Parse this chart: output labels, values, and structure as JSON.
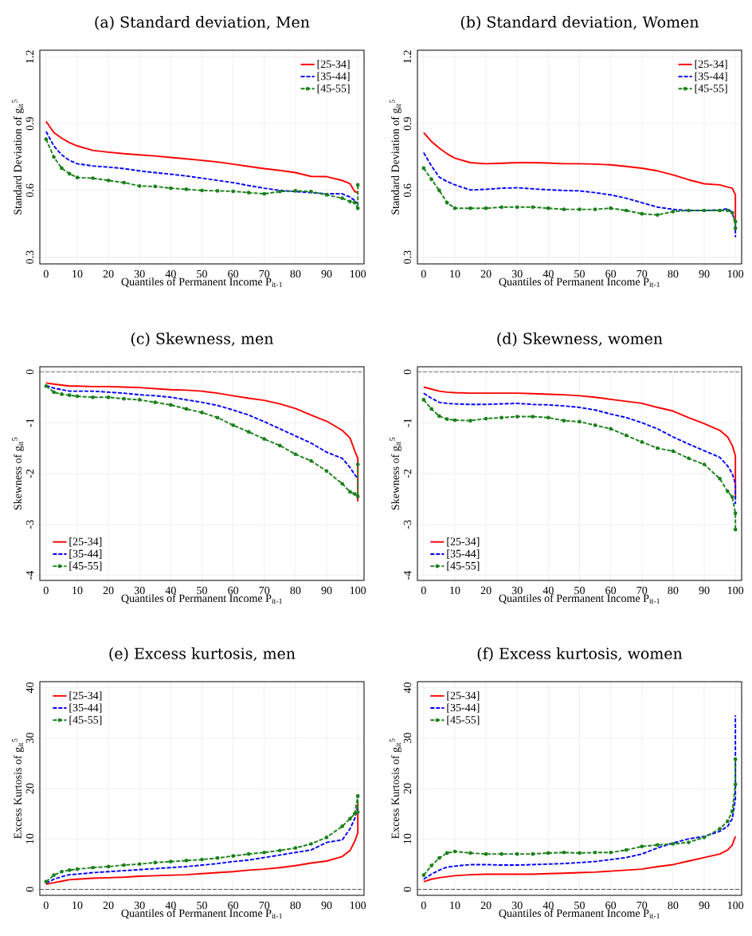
{
  "chart_data": [
    {
      "type": "line",
      "title": "(a) Standard deviation, Men",
      "xlabel": "Quantiles of Permanent Income P$_{it-1}$",
      "ylabel": "Standard Deviation of g$_{it}$$^{5}$",
      "x": [
        0,
        2.5,
        5,
        7.5,
        10,
        15,
        20,
        25,
        30,
        35,
        40,
        45,
        50,
        55,
        60,
        65,
        70,
        75,
        80,
        85,
        90,
        95,
        97.5,
        99,
        100,
        100
      ],
      "xlim": [
        -2,
        102
      ],
      "xticks": [
        0,
        10,
        20,
        30,
        40,
        50,
        60,
        70,
        80,
        90,
        100
      ],
      "ylim": [
        0.27,
        1.23
      ],
      "yticks": [
        0.3,
        0.6,
        0.9,
        1.2
      ],
      "grid": true,
      "legend": "top right",
      "series": [
        {
          "name": "[25-34]",
          "color": "#ff0000",
          "line_style": "solid",
          "marker": "none",
          "values": [
            0.91,
            0.86,
            0.835,
            0.815,
            0.8,
            0.78,
            0.772,
            0.765,
            0.76,
            0.755,
            0.748,
            0.742,
            0.735,
            0.728,
            0.718,
            0.708,
            0.698,
            0.69,
            0.68,
            0.663,
            0.662,
            0.645,
            0.63,
            0.595,
            0.59,
            0.59
          ]
        },
        {
          "name": "[35-44]",
          "color": "#0000ff",
          "line_style": "dashed",
          "marker": "none",
          "x": [
            0,
            2.5,
            5,
            7.5,
            10,
            15,
            20,
            25,
            30,
            35,
            40,
            45,
            50,
            55,
            60,
            65,
            70,
            75,
            80,
            85,
            90,
            95,
            97.5,
            99,
            100
          ],
          "values": [
            0.865,
            0.8,
            0.76,
            0.735,
            0.72,
            0.71,
            0.705,
            0.698,
            0.688,
            0.68,
            0.673,
            0.665,
            0.655,
            0.645,
            0.635,
            0.622,
            0.61,
            0.6,
            0.595,
            0.59,
            0.585,
            0.585,
            0.57,
            0.555,
            0.54
          ]
        },
        {
          "name": "[45-55]",
          "color": "#1a801a",
          "line_style": "dashed",
          "marker": "circle",
          "values": [
            0.83,
            0.75,
            0.7,
            0.675,
            0.658,
            0.655,
            0.645,
            0.635,
            0.62,
            0.618,
            0.61,
            0.605,
            0.6,
            0.598,
            0.596,
            0.59,
            0.585,
            0.595,
            0.598,
            0.595,
            0.58,
            0.565,
            0.55,
            0.545,
            0.52,
            0.625
          ]
        }
      ]
    },
    {
      "type": "line",
      "title": "(b) Standard deviation, Women",
      "xlabel": "Quantiles of Permanent Income P$_{it-1}$",
      "ylabel": "Standard Deviation of g$_{it}$$^{5}$",
      "x": [
        0,
        2.5,
        5,
        7.5,
        10,
        15,
        20,
        25,
        30,
        35,
        40,
        45,
        50,
        55,
        60,
        65,
        70,
        75,
        80,
        85,
        90,
        95,
        97.5,
        99,
        100,
        100
      ],
      "xlim": [
        -2,
        102
      ],
      "xticks": [
        0,
        10,
        20,
        30,
        40,
        50,
        60,
        70,
        80,
        90,
        100
      ],
      "ylim": [
        0.27,
        1.23
      ],
      "yticks": [
        0.3,
        0.6,
        0.9,
        1.2
      ],
      "grid": true,
      "legend": "top right",
      "series": [
        {
          "name": "[25-34]",
          "color": "#ff0000",
          "line_style": "solid",
          "marker": "none",
          "values": [
            0.86,
            0.82,
            0.79,
            0.765,
            0.745,
            0.725,
            0.72,
            0.722,
            0.725,
            0.725,
            0.723,
            0.72,
            0.72,
            0.718,
            0.715,
            0.708,
            0.7,
            0.688,
            0.67,
            0.648,
            0.63,
            0.625,
            0.615,
            0.61,
            0.58,
            0.47
          ]
        },
        {
          "name": "[35-44]",
          "color": "#0000ff",
          "line_style": "dashed",
          "marker": "none",
          "values": [
            0.77,
            0.71,
            0.66,
            0.64,
            0.625,
            0.602,
            0.605,
            0.61,
            0.612,
            0.607,
            0.603,
            0.6,
            0.598,
            0.59,
            0.58,
            0.565,
            0.545,
            0.525,
            0.515,
            0.51,
            0.51,
            0.512,
            0.518,
            0.5,
            0.45,
            0.39
          ]
        },
        {
          "name": "[45-55]",
          "color": "#1a801a",
          "line_style": "dashed",
          "marker": "circle",
          "values": [
            0.7,
            0.65,
            0.6,
            0.545,
            0.52,
            0.52,
            0.52,
            0.525,
            0.525,
            0.525,
            0.52,
            0.515,
            0.515,
            0.515,
            0.52,
            0.51,
            0.495,
            0.49,
            0.505,
            0.51,
            0.51,
            0.51,
            0.51,
            0.5,
            0.46,
            0.43
          ]
        }
      ]
    },
    {
      "type": "line",
      "title": "(c) Skewness, men",
      "xlabel": "Quantiles of Permanent Income P$_{it-1}$",
      "ylabel": "Skewness of g$_{it}$$^{5}$",
      "x": [
        0,
        2.5,
        5,
        7.5,
        10,
        15,
        20,
        25,
        30,
        35,
        40,
        45,
        50,
        55,
        60,
        65,
        70,
        75,
        80,
        85,
        90,
        95,
        97.5,
        99,
        100,
        100
      ],
      "xlim": [
        -2,
        102
      ],
      "xticks": [
        0,
        10,
        20,
        30,
        40,
        50,
        60,
        70,
        80,
        90,
        100
      ],
      "ylim": [
        -4.1,
        0.1
      ],
      "yticks": [
        -4,
        -3,
        -2,
        -1,
        0
      ],
      "grid": true,
      "legend": "bottom left",
      "ref_lines": [
        {
          "axis": "y",
          "value": 0,
          "color": "#555555",
          "line_style": "dashed"
        }
      ],
      "series": [
        {
          "name": "[25-34]",
          "color": "#ff0000",
          "line_style": "solid",
          "marker": "none",
          "values": [
            -0.22,
            -0.24,
            -0.26,
            -0.28,
            -0.28,
            -0.29,
            -0.29,
            -0.3,
            -0.31,
            -0.33,
            -0.35,
            -0.36,
            -0.38,
            -0.42,
            -0.47,
            -0.52,
            -0.56,
            -0.63,
            -0.72,
            -0.85,
            -0.97,
            -1.15,
            -1.3,
            -1.55,
            -1.7,
            -2.55
          ]
        },
        {
          "name": "[35-44]",
          "color": "#0000ff",
          "line_style": "dashed",
          "marker": "none",
          "x": [
            0,
            2.5,
            5,
            7.5,
            10,
            15,
            20,
            25,
            30,
            35,
            40,
            45,
            50,
            55,
            60,
            65,
            70,
            75,
            80,
            85,
            90,
            95,
            97.5,
            99,
            100
          ],
          "values": [
            -0.27,
            -0.32,
            -0.35,
            -0.38,
            -0.38,
            -0.38,
            -0.4,
            -0.42,
            -0.45,
            -0.47,
            -0.5,
            -0.55,
            -0.6,
            -0.66,
            -0.75,
            -0.85,
            -0.98,
            -1.12,
            -1.26,
            -1.4,
            -1.58,
            -1.7,
            -1.88,
            -2.02,
            -2.1
          ]
        },
        {
          "name": "[45-55]",
          "color": "#1a801a",
          "line_style": "dashed",
          "marker": "circle",
          "values": [
            -0.28,
            -0.4,
            -0.44,
            -0.46,
            -0.48,
            -0.5,
            -0.5,
            -0.53,
            -0.55,
            -0.6,
            -0.65,
            -0.73,
            -0.8,
            -0.9,
            -1.05,
            -1.18,
            -1.32,
            -1.45,
            -1.62,
            -1.75,
            -1.95,
            -2.2,
            -2.36,
            -2.4,
            -2.45,
            -1.82
          ]
        }
      ]
    },
    {
      "type": "line",
      "title": "(d) Skewness, women",
      "xlabel": "Quantiles of Permanent Income P$_{it-1}$",
      "ylabel": "Skewness of g$_{it}$$^{5}$",
      "x": [
        0,
        2.5,
        5,
        7.5,
        10,
        15,
        20,
        25,
        30,
        35,
        40,
        45,
        50,
        55,
        60,
        65,
        70,
        75,
        80,
        85,
        90,
        95,
        97.5,
        99,
        100,
        100
      ],
      "xlim": [
        -2,
        102
      ],
      "xticks": [
        0,
        10,
        20,
        30,
        40,
        50,
        60,
        70,
        80,
        90,
        100
      ],
      "ylim": [
        -4.1,
        0.1
      ],
      "yticks": [
        -4,
        -3,
        -2,
        -1,
        0
      ],
      "grid": true,
      "legend": "bottom left",
      "ref_lines": [
        {
          "axis": "y",
          "value": 0,
          "color": "#555555",
          "line_style": "dashed"
        }
      ],
      "series": [
        {
          "name": "[25-34]",
          "color": "#ff0000",
          "line_style": "solid",
          "marker": "none",
          "values": [
            -0.3,
            -0.34,
            -0.38,
            -0.4,
            -0.41,
            -0.42,
            -0.42,
            -0.42,
            -0.42,
            -0.43,
            -0.44,
            -0.45,
            -0.47,
            -0.5,
            -0.54,
            -0.58,
            -0.62,
            -0.7,
            -0.77,
            -0.9,
            -1.02,
            -1.15,
            -1.28,
            -1.45,
            -1.65,
            -2.5
          ]
        },
        {
          "name": "[35-44]",
          "color": "#0000ff",
          "line_style": "dashed",
          "marker": "none",
          "values": [
            -0.42,
            -0.52,
            -0.6,
            -0.62,
            -0.63,
            -0.64,
            -0.64,
            -0.63,
            -0.62,
            -0.64,
            -0.65,
            -0.67,
            -0.7,
            -0.75,
            -0.83,
            -0.9,
            -1.0,
            -1.12,
            -1.28,
            -1.42,
            -1.55,
            -1.68,
            -1.85,
            -2.0,
            -2.2,
            -2.6
          ]
        },
        {
          "name": "[45-55]",
          "color": "#1a801a",
          "line_style": "dashed",
          "marker": "circle",
          "values": [
            -0.55,
            -0.73,
            -0.87,
            -0.93,
            -0.95,
            -0.96,
            -0.92,
            -0.9,
            -0.88,
            -0.88,
            -0.9,
            -0.96,
            -0.98,
            -1.05,
            -1.12,
            -1.25,
            -1.38,
            -1.5,
            -1.56,
            -1.7,
            -1.82,
            -2.1,
            -2.35,
            -2.46,
            -2.78,
            -3.1
          ]
        }
      ]
    },
    {
      "type": "line",
      "title": "(e) Excess kurtosis, men",
      "xlabel": "Quantiles of Permanent Income P$_{it-1}$",
      "ylabel": "Excess Kurtosis of g$_{it}$$^{5}$",
      "x": [
        0,
        2.5,
        5,
        7.5,
        10,
        15,
        20,
        25,
        30,
        35,
        40,
        45,
        50,
        55,
        60,
        65,
        70,
        75,
        80,
        85,
        90,
        95,
        97.5,
        99,
        100,
        100
      ],
      "xlim": [
        -2,
        102
      ],
      "xticks": [
        0,
        10,
        20,
        30,
        40,
        50,
        60,
        70,
        80,
        90,
        100
      ],
      "ylim": [
        -1.2,
        41.2
      ],
      "yticks": [
        0,
        10,
        20,
        30,
        40
      ],
      "grid": true,
      "legend": "top left",
      "ref_lines": [
        {
          "axis": "y",
          "value": 0,
          "color": "#555555",
          "line_style": "dashed"
        }
      ],
      "series": [
        {
          "name": "[25-34]",
          "color": "#ff0000",
          "line_style": "solid",
          "marker": "none",
          "values": [
            1.0,
            1.3,
            1.6,
            1.9,
            2.0,
            2.2,
            2.3,
            2.4,
            2.6,
            2.7,
            2.8,
            2.9,
            3.1,
            3.3,
            3.5,
            3.8,
            4.0,
            4.3,
            4.7,
            5.2,
            5.6,
            6.5,
            7.7,
            9.5,
            11.2,
            17
          ]
        },
        {
          "name": "[35-44]",
          "color": "#0000ff",
          "line_style": "dashed",
          "marker": "none",
          "x": [
            0,
            2.5,
            5,
            7.5,
            10,
            15,
            20,
            25,
            30,
            35,
            40,
            45,
            50,
            55,
            60,
            65,
            70,
            75,
            80,
            85,
            90,
            95,
            97.5,
            99,
            100
          ],
          "values": [
            1.2,
            2.0,
            2.5,
            2.9,
            3.0,
            3.3,
            3.5,
            3.7,
            3.9,
            4.1,
            4.3,
            4.5,
            4.8,
            5.1,
            5.5,
            5.8,
            6.3,
            6.8,
            7.3,
            7.8,
            9.3,
            9.8,
            12,
            14,
            16.5
          ]
        },
        {
          "name": "[45-55]",
          "color": "#1a801a",
          "line_style": "dashed",
          "marker": "circle",
          "values": [
            1.5,
            2.8,
            3.5,
            3.8,
            4.0,
            4.3,
            4.5,
            4.8,
            5.0,
            5.3,
            5.5,
            5.7,
            5.9,
            6.2,
            6.6,
            7.0,
            7.3,
            7.7,
            8.2,
            9.0,
            10.3,
            12.5,
            14.0,
            15.0,
            18.5,
            15.3
          ]
        }
      ]
    },
    {
      "type": "line",
      "title": "(f) Excess kurtosis, women",
      "xlabel": "Quantiles of Permanent Income P$_{it-1}$",
      "ylabel": "Excess Kurtosis of g$_{it}$$^{5}$",
      "x": [
        0,
        2.5,
        5,
        7.5,
        10,
        15,
        20,
        25,
        30,
        35,
        40,
        45,
        50,
        55,
        60,
        65,
        70,
        75,
        80,
        85,
        90,
        95,
        97.5,
        99,
        100,
        100
      ],
      "xlim": [
        -2,
        102
      ],
      "xticks": [
        0,
        10,
        20,
        30,
        40,
        50,
        60,
        70,
        80,
        90,
        100
      ],
      "ylim": [
        -1.2,
        41.2
      ],
      "yticks": [
        0,
        10,
        20,
        30,
        40
      ],
      "grid": true,
      "legend": "top left",
      "ref_lines": [
        {
          "axis": "y",
          "value": 0,
          "color": "#555555",
          "line_style": "dashed"
        }
      ],
      "series": [
        {
          "name": "[25-34]",
          "color": "#ff0000",
          "line_style": "solid",
          "marker": "none",
          "values": [
            1.5,
            2.0,
            2.3,
            2.5,
            2.7,
            2.9,
            3.0,
            3.0,
            3.0,
            3.0,
            3.1,
            3.2,
            3.3,
            3.4,
            3.6,
            3.8,
            4.0,
            4.5,
            4.9,
            5.6,
            6.3,
            7.0,
            7.8,
            8.8,
            10.5,
            null
          ]
        },
        {
          "name": "[35-44]",
          "color": "#0000ff",
          "line_style": "dashed",
          "marker": "none",
          "values": [
            2.0,
            3.0,
            3.8,
            4.4,
            4.6,
            4.9,
            4.9,
            4.8,
            4.8,
            4.9,
            5.0,
            5.1,
            5.3,
            5.5,
            5.9,
            6.3,
            7.0,
            8.2,
            9.2,
            10.0,
            10.5,
            11.5,
            12.5,
            14,
            18,
            34.5
          ]
        },
        {
          "name": "[45-55]",
          "color": "#1a801a",
          "line_style": "dashed",
          "marker": "circle",
          "values": [
            2.8,
            4.7,
            6.2,
            7.2,
            7.5,
            7.2,
            7.0,
            7.0,
            7.0,
            7.0,
            7.2,
            7.3,
            7.2,
            7.3,
            7.3,
            7.8,
            8.5,
            8.8,
            9.0,
            9.3,
            10.3,
            12.0,
            13.5,
            15.5,
            20.8,
            25.8
          ]
        }
      ]
    }
  ]
}
